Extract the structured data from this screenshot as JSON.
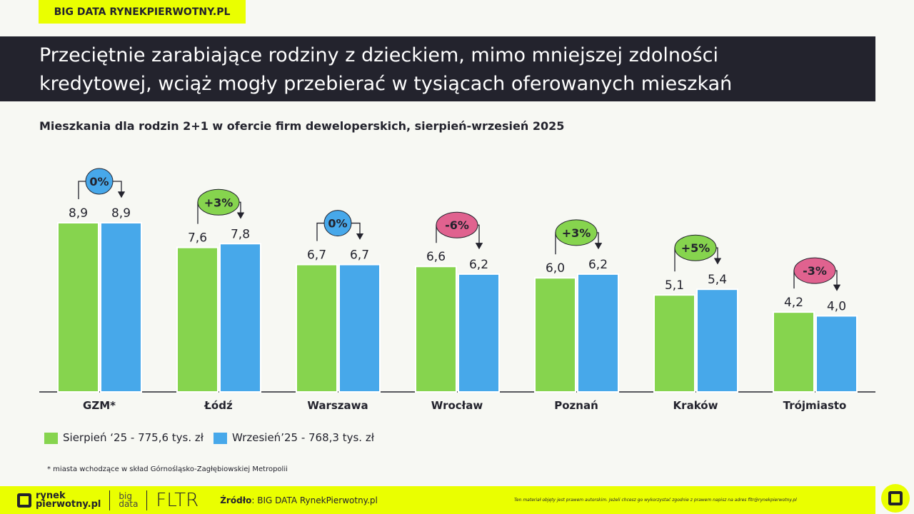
{
  "tag": "BIG DATA RYNEKPIERWOTNY.PL",
  "title_line1": "Przeciętnie zarabiające rodziny z dzieckiem, mimo mniejszej zdolności",
  "title_line2": "kredytowej, wciąż mogły przebierać w tysiącach oferowanych mieszkań",
  "chart_data": {
    "type": "bar",
    "title": "Mieszkania dla rodzin 2+1 w ofercie firm deweloperskich, sierpień-wrzesień 2025",
    "categories": [
      "GZM*",
      "Łódź",
      "Warszawa",
      "Wrocław",
      "Poznań",
      "Kraków",
      "Trójmiasto"
    ],
    "series": [
      {
        "name": "Sierpień ‘25 - 775,6 tys. zł",
        "color": "#86d44e",
        "values": [
          8.9,
          7.6,
          6.7,
          6.6,
          6.0,
          5.1,
          4.2
        ],
        "labels": [
          "8,9",
          "7,6",
          "6,7",
          "6,6",
          "6,0",
          "5,1",
          "4,2"
        ]
      },
      {
        "name": "Wrzesień’25 - 768,3 tys. zł",
        "color": "#47a8ea",
        "values": [
          8.9,
          7.8,
          6.7,
          6.2,
          6.2,
          5.4,
          4.0
        ],
        "labels": [
          "8,9",
          "7,8",
          "6,7",
          "6,2",
          "6,2",
          "5,4",
          "4,0"
        ]
      }
    ],
    "changes": [
      {
        "label": "0%",
        "color": "#47a8ea"
      },
      {
        "label": "+3%",
        "color": "#86d44e"
      },
      {
        "label": "0%",
        "color": "#47a8ea"
      },
      {
        "label": "-6%",
        "color": "#e0628f"
      },
      {
        "label": "+3%",
        "color": "#86d44e"
      },
      {
        "label": "+5%",
        "color": "#86d44e"
      },
      {
        "label": "-3%",
        "color": "#e0628f"
      }
    ],
    "ylim": [
      0,
      10
    ],
    "grid": false,
    "legend": "bottom-left"
  },
  "note": "* miasta wchodzące w skład Górnośląsko-Zagłębiowskiej Metropolii",
  "footer": {
    "logo1a": "rynek",
    "logo1b": "pierwotny.pl",
    "logo2a": "big",
    "logo2b": "data",
    "logo3": "FLTR",
    "source_label": "Źródło",
    "source": ": BIG DATA RynekPierwotny.pl",
    "copyright": "Ten materiał objęty jest prawem autorskim. Jeżeli chcesz go wykorzystać zgodnie z prawem napisz na adres fltr@rynekpierwotny.pl"
  }
}
